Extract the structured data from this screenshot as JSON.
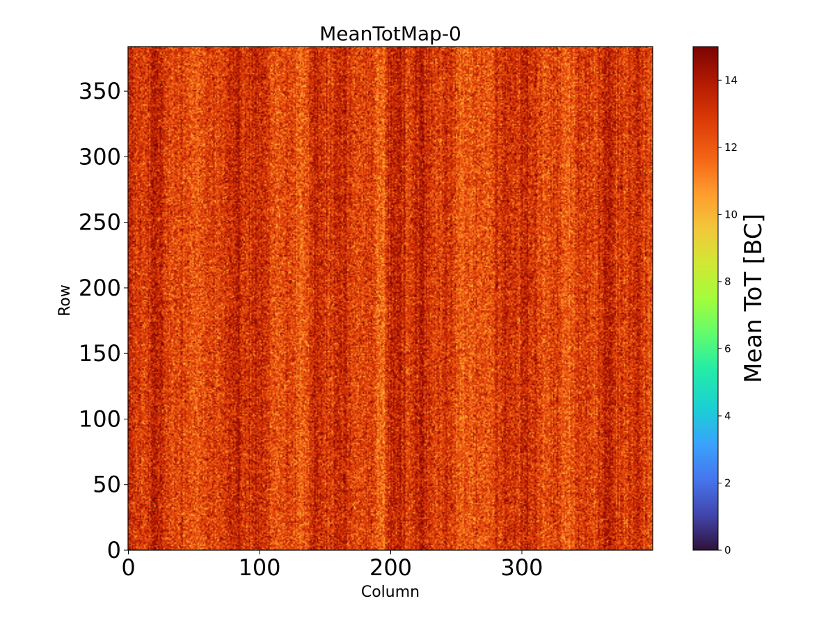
{
  "chart_data": {
    "type": "heatmap",
    "title": "MeanTotMap-0",
    "xlabel": "Column",
    "ylabel": "Row",
    "xlim": [
      0,
      400
    ],
    "ylim": [
      0,
      384
    ],
    "x_ticks": [
      0,
      100,
      200,
      300
    ],
    "x_tick_labels": [
      "0",
      "100",
      "200",
      "300"
    ],
    "y_ticks": [
      0,
      50,
      100,
      150,
      200,
      250,
      300,
      350
    ],
    "y_tick_labels": [
      "0",
      "50",
      "100",
      "150",
      "200",
      "250",
      "300",
      "350"
    ],
    "grid": false,
    "colorbar": {
      "label": "Mean ToT [BC]",
      "range": [
        0,
        15
      ],
      "ticks": [
        0,
        2,
        4,
        6,
        8,
        10,
        12,
        14
      ],
      "tick_labels": [
        "0",
        "2",
        "4",
        "6",
        "8",
        "10",
        "12",
        "14"
      ],
      "colormap": "turbo"
    },
    "data_summary": {
      "columns": 400,
      "rows": 384,
      "typical_value_range": [
        10,
        15
      ],
      "typical_mean": 12.7
    }
  }
}
